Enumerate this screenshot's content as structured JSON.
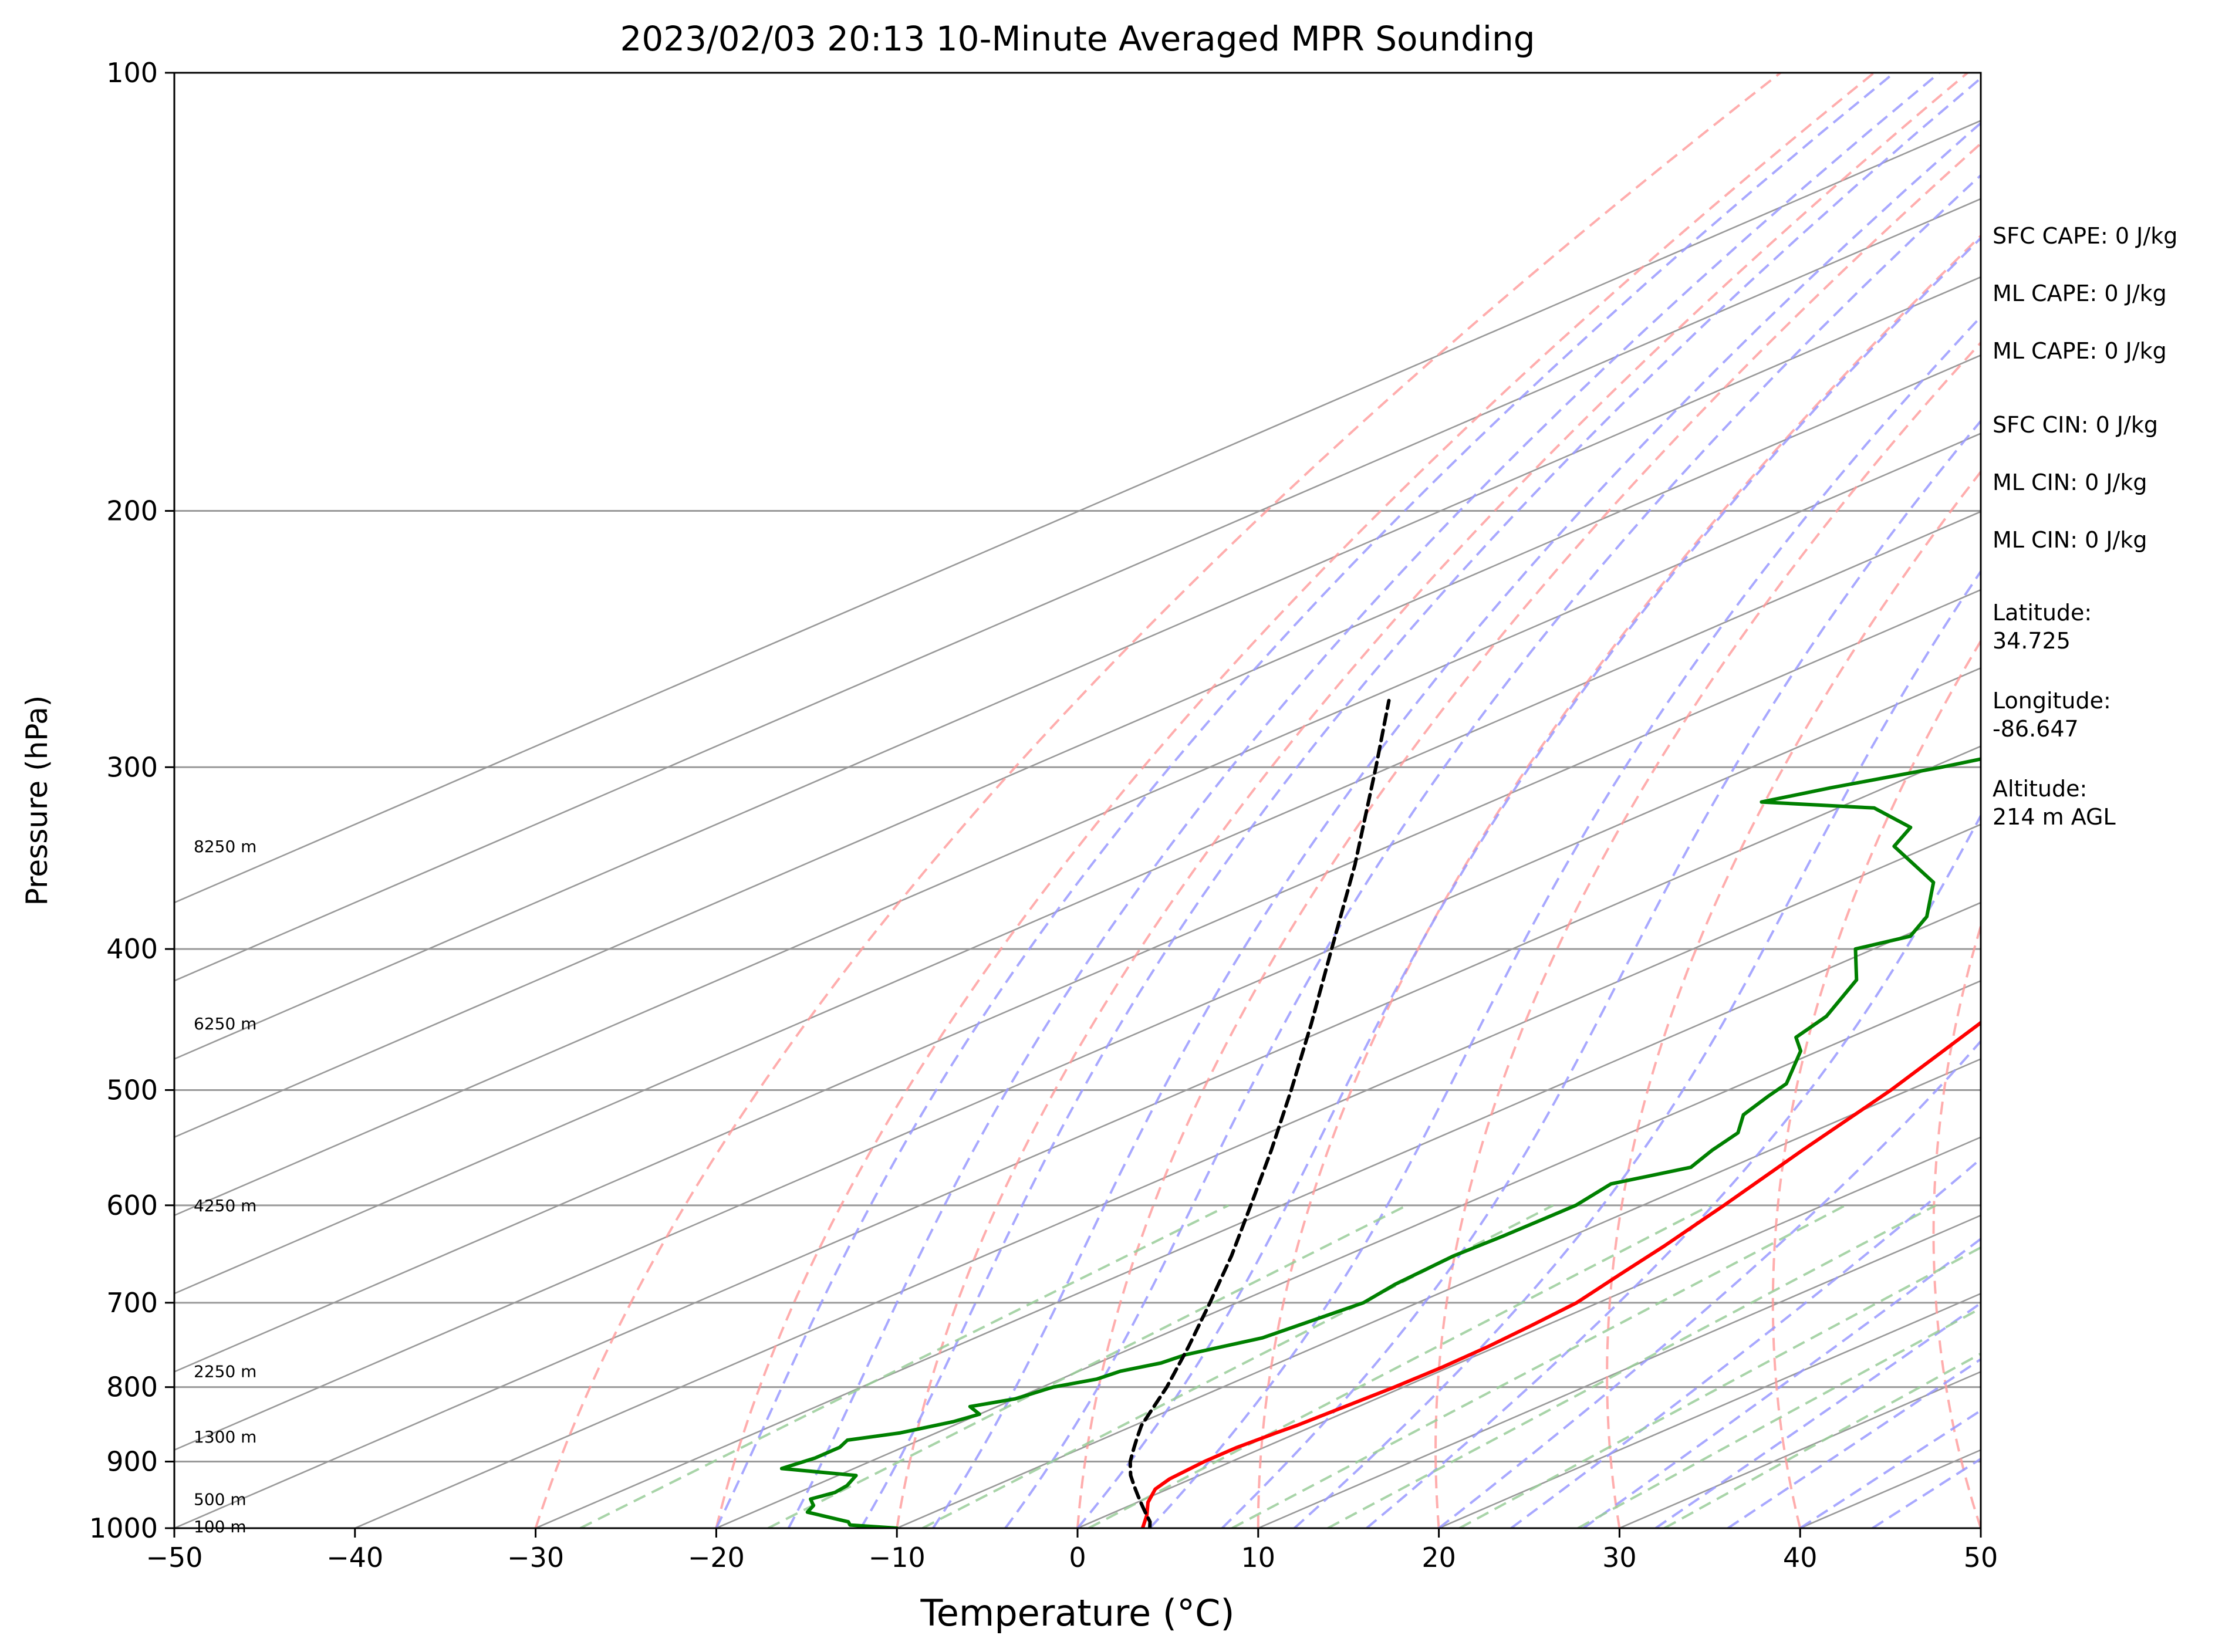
{
  "chart_data": {
    "type": "line",
    "title": "2023/02/03 20:13 10-Minute Averaged MPR Sounding",
    "xlabel": "Temperature (°C)",
    "ylabel": "Pressure (hPa)",
    "xlim": [
      -50,
      50
    ],
    "ylim": [
      1000,
      100
    ],
    "log_y": true,
    "skewed_isotherms": true,
    "grid": true,
    "x_ticks": [
      "−50",
      "−40",
      "−30",
      "−20",
      "−10",
      "0",
      "10",
      "20",
      "30",
      "40",
      "50"
    ],
    "y_ticks": [
      "100",
      "200",
      "300",
      "400",
      "500",
      "600",
      "700",
      "800",
      "900",
      "1000"
    ],
    "height_labels": [
      {
        "p": 997,
        "label": "100 m"
      },
      {
        "p": 955,
        "label": "500 m"
      },
      {
        "p": 865,
        "label": "1300 m"
      },
      {
        "p": 780,
        "label": "2250 m"
      },
      {
        "p": 600,
        "label": "4250 m"
      },
      {
        "p": 450,
        "label": "6250 m"
      },
      {
        "p": 340,
        "label": "8250 m"
      }
    ],
    "colors": {
      "temperature": "#ff0000",
      "dewpoint": "#008000",
      "parcel": "#000000",
      "dry_adiabats": "#ff9999",
      "moist_adiabats": "#9999ff",
      "mixing_ratio": "#99cc99",
      "isotherms": "#999999"
    },
    "series": [
      {
        "id": "temperature",
        "points": [
          [
            1000,
            3.6
          ],
          [
            980,
            2.2
          ],
          [
            960,
            0.6
          ],
          [
            940,
            -0.7
          ],
          [
            925,
            -1.2
          ],
          [
            900,
            -1.5
          ],
          [
            880,
            -1.5
          ],
          [
            860,
            -1.2
          ],
          [
            850,
            -1.0
          ],
          [
            830,
            -0.8
          ],
          [
            800,
            -0.5
          ],
          [
            775,
            -0.4
          ],
          [
            750,
            -0.5
          ],
          [
            725,
            -0.8
          ],
          [
            700,
            -1.2
          ],
          [
            670,
            -2.4
          ],
          [
            640,
            -3.6
          ],
          [
            600,
            -5.5
          ],
          [
            550,
            -8.2
          ],
          [
            500,
            -11.0
          ],
          [
            450,
            -14.6
          ],
          [
            420,
            -17.4
          ],
          [
            400,
            -19.5
          ],
          [
            370,
            -22.2
          ],
          [
            340,
            -25.0
          ],
          [
            320,
            -27.0
          ],
          [
            300,
            -29.0
          ],
          [
            280,
            -30.8
          ],
          [
            260,
            -32.7
          ]
        ]
      },
      {
        "id": "dewpoint",
        "points": [
          [
            1000,
            -10
          ],
          [
            995,
            -13
          ],
          [
            990,
            -13.5
          ],
          [
            975,
            -17
          ],
          [
            965,
            -17.5
          ],
          [
            955,
            -18.5
          ],
          [
            945,
            -18
          ],
          [
            935,
            -18.2
          ],
          [
            920,
            -19
          ],
          [
            910,
            -24
          ],
          [
            895,
            -23.5
          ],
          [
            880,
            -23.5
          ],
          [
            870,
            -24
          ],
          [
            860,
            -22
          ],
          [
            845,
            -20.5
          ],
          [
            835,
            -20
          ],
          [
            825,
            -21.5
          ],
          [
            815,
            -20
          ],
          [
            800,
            -19.4
          ],
          [
            790,
            -18
          ],
          [
            780,
            -17.7
          ],
          [
            770,
            -16.5
          ],
          [
            760,
            -16.2
          ],
          [
            740,
            -14.1
          ],
          [
            700,
            -13.0
          ],
          [
            680,
            -13.6
          ],
          [
            650,
            -14.0
          ],
          [
            630,
            -13.8
          ],
          [
            600,
            -13.7
          ],
          [
            580,
            -14.5
          ],
          [
            565,
            -12.2
          ],
          [
            550,
            -13.2
          ],
          [
            535,
            -14.0
          ],
          [
            520,
            -16.0
          ],
          [
            505,
            -17.0
          ],
          [
            495,
            -17.6
          ],
          [
            470,
            -21
          ],
          [
            460,
            -23
          ],
          [
            445,
            -24
          ],
          [
            420,
            -27
          ],
          [
            400,
            -31
          ],
          [
            392,
            -29.6
          ],
          [
            380,
            -31.2
          ],
          [
            360,
            -35.2
          ],
          [
            340,
            -42.0
          ],
          [
            330,
            -43.5
          ],
          [
            320,
            -48.0
          ],
          [
            317,
            -55
          ],
          [
            310,
            -53
          ],
          [
            300,
            -49.5
          ],
          [
            290,
            -46.5
          ],
          [
            280,
            -48
          ],
          [
            270,
            -53
          ],
          [
            261,
            -55
          ]
        ]
      },
      {
        "id": "parcel",
        "points": [
          [
            1000,
            4.0
          ],
          [
            990,
            3.2
          ],
          [
            980,
            2.2
          ],
          [
            970,
            1.2
          ],
          [
            960,
            0.2
          ],
          [
            950,
            -0.8
          ],
          [
            940,
            -1.8
          ],
          [
            930,
            -2.8
          ],
          [
            920,
            -3.8
          ],
          [
            910,
            -4.7
          ],
          [
            900,
            -5.6
          ],
          [
            890,
            -6.4
          ],
          [
            880,
            -7.2
          ],
          [
            870,
            -8.0
          ],
          [
            860,
            -8.8
          ],
          [
            850,
            -9.6
          ],
          [
            800,
            -13.1
          ],
          [
            750,
            -17.1
          ],
          [
            700,
            -21.5
          ],
          [
            650,
            -26.3
          ],
          [
            600,
            -31.7
          ],
          [
            550,
            -37.6
          ],
          [
            500,
            -44.2
          ],
          [
            450,
            -51.6
          ],
          [
            400,
            -60.0
          ],
          [
            350,
            -69.5
          ],
          [
            300,
            -80.8
          ],
          [
            270,
            -88.6
          ]
        ]
      }
    ]
  },
  "side_stats": [
    {
      "label": "SFC CAPE: 0 J/kg"
    },
    {
      "label": "ML CAPE: 0 J/kg"
    },
    {
      "label": "ML CAPE: 0 J/kg"
    },
    {
      "label": "SFC CIN: 0 J/kg"
    },
    {
      "label": "ML CIN: 0 J/kg"
    },
    {
      "label": "ML CIN: 0 J/kg"
    },
    {
      "label": "Latitude:\n34.725"
    },
    {
      "label": "Longitude:\n-86.647"
    },
    {
      "label": "Altitude:\n214 m AGL"
    }
  ]
}
